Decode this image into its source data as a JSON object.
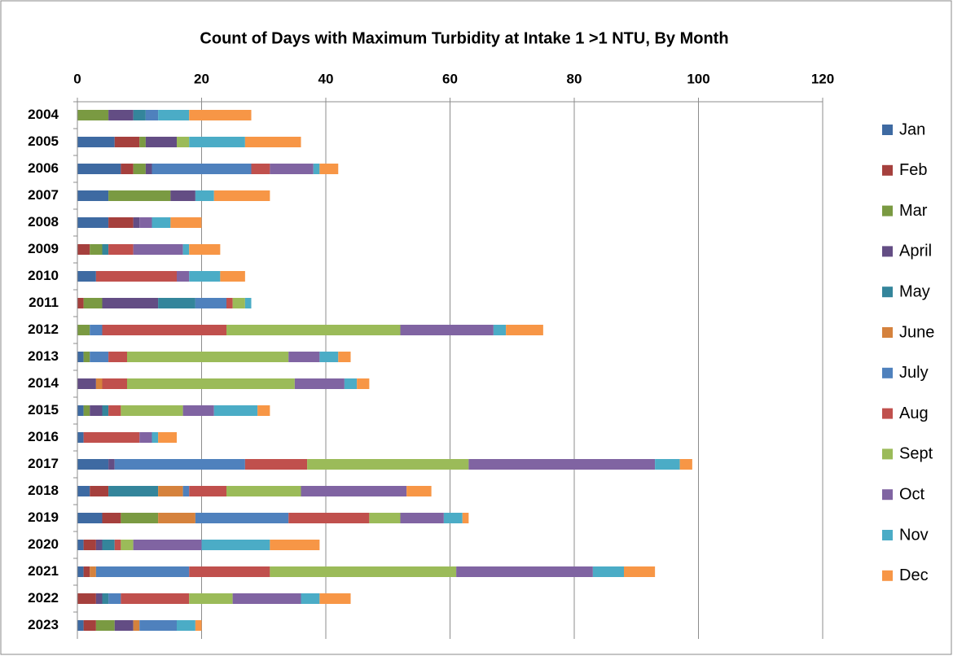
{
  "chart_data": {
    "type": "stacked-barh",
    "title": "Count of Days with Maximum Turbidity at Intake 1 >1 NTU, By Month",
    "categories": [
      "2004",
      "2005",
      "2006",
      "2007",
      "2008",
      "2009",
      "2010",
      "2011",
      "2012",
      "2013",
      "2014",
      "2015",
      "2016",
      "2017",
      "2018",
      "2019",
      "2020",
      "2021",
      "2022",
      "2023"
    ],
    "series": [
      {
        "name": "Jan",
        "color": "#3e6aa2",
        "values": [
          0,
          6,
          7,
          5,
          5,
          0,
          3,
          0,
          0,
          1,
          0,
          1,
          1,
          5,
          2,
          4,
          1,
          1,
          0,
          1
        ]
      },
      {
        "name": "Feb",
        "color": "#a5403d",
        "values": [
          0,
          4,
          2,
          0,
          4,
          2,
          0,
          1,
          0,
          0,
          0,
          0,
          0,
          0,
          3,
          3,
          2,
          1,
          3,
          2
        ]
      },
      {
        "name": "Mar",
        "color": "#7a9a42",
        "values": [
          5,
          1,
          2,
          10,
          0,
          2,
          0,
          3,
          2,
          1,
          0,
          1,
          0,
          0,
          0,
          6,
          0,
          0,
          0,
          3
        ]
      },
      {
        "name": "April",
        "color": "#634d84",
        "values": [
          4,
          5,
          1,
          4,
          1,
          0,
          0,
          9,
          0,
          0,
          3,
          2,
          0,
          1,
          0,
          0,
          1,
          0,
          1,
          3
        ]
      },
      {
        "name": "May",
        "color": "#34859b",
        "values": [
          2,
          0,
          0,
          0,
          0,
          1,
          0,
          6,
          0,
          0,
          0,
          1,
          0,
          0,
          8,
          0,
          2,
          0,
          1,
          0
        ]
      },
      {
        "name": "June",
        "color": "#d5823d",
        "values": [
          0,
          0,
          0,
          0,
          0,
          0,
          0,
          0,
          0,
          0,
          1,
          0,
          0,
          0,
          4,
          6,
          0,
          1,
          0,
          1
        ]
      },
      {
        "name": "July",
        "color": "#4f81bd",
        "values": [
          2,
          0,
          16,
          0,
          0,
          0,
          0,
          5,
          2,
          3,
          0,
          0,
          0,
          21,
          1,
          15,
          0,
          15,
          2,
          6
        ]
      },
      {
        "name": "Aug",
        "color": "#c0504d",
        "values": [
          0,
          0,
          3,
          0,
          0,
          4,
          13,
          1,
          20,
          3,
          4,
          2,
          9,
          10,
          6,
          13,
          1,
          13,
          11,
          0
        ]
      },
      {
        "name": "Sept",
        "color": "#9bbb59",
        "values": [
          0,
          2,
          0,
          0,
          0,
          0,
          0,
          2,
          28,
          26,
          27,
          10,
          0,
          26,
          12,
          5,
          2,
          30,
          7,
          0
        ]
      },
      {
        "name": "Oct",
        "color": "#8064a2",
        "values": [
          0,
          0,
          7,
          0,
          2,
          8,
          2,
          0,
          15,
          5,
          8,
          5,
          2,
          30,
          17,
          7,
          11,
          22,
          11,
          0
        ]
      },
      {
        "name": "Nov",
        "color": "#4bacc6",
        "values": [
          5,
          9,
          1,
          3,
          3,
          1,
          5,
          1,
          2,
          3,
          2,
          7,
          1,
          4,
          0,
          3,
          11,
          5,
          3,
          3
        ]
      },
      {
        "name": "Dec",
        "color": "#f79646",
        "values": [
          10,
          9,
          3,
          9,
          5,
          5,
          4,
          0,
          6,
          2,
          2,
          2,
          3,
          2,
          4,
          1,
          8,
          5,
          5,
          1
        ]
      }
    ],
    "xlim": [
      0,
      120
    ],
    "xticks": [
      0,
      20,
      40,
      60,
      80,
      100,
      120
    ],
    "grid": true,
    "legend": "right"
  }
}
